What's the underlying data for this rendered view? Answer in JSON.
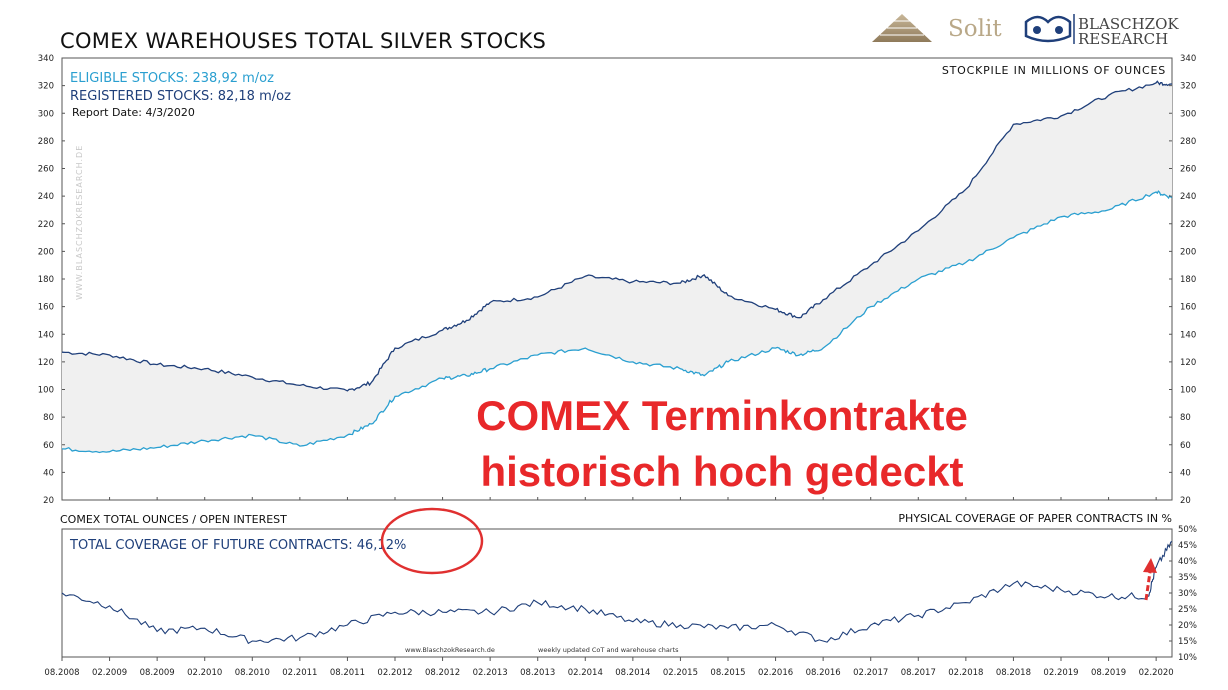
{
  "header": {
    "title": "COMEX WAREHOUSES  TOTAL SILVER STOCKS",
    "logo_solit": "Solit",
    "logo_blaschzok_1": "BLASCHZOK",
    "logo_blaschzok_2": "RESEARCH"
  },
  "legend": {
    "eligible": "ELIGIBLE STOCKS: 238,92 m/oz",
    "registered": "REGISTERED STOCKS: 82,18 m/oz",
    "report_date": "Report Date: 4/3/2020",
    "units_note": "STOCKPILE IN MILLIONS OF OUNCES",
    "watermark": "WWW.BLASCHZOKRESEARCH.DE"
  },
  "lower_panel": {
    "left_title": "COMEX TOTAL OUNCES / OPEN INTEREST",
    "right_title": "PHYSICAL COVERAGE OF PAPER CONTRACTS IN %",
    "coverage_label": "TOTAL COVERAGE OF FUTURE CONTRACTS: 46,12%",
    "footer_site": "www.BlaschzokResearch.de",
    "footer_note": "weekly updated CoT and warehouse charts"
  },
  "overlay": {
    "line1": "COMEX Terminkontrakte",
    "line2": "historisch hoch gedeckt"
  },
  "colors": {
    "total_line": "#1f3f7a",
    "eligible_line": "#2a9fd0",
    "band_fill": "#f0f0f0",
    "coverage_line": "#1f3f7a",
    "highlight_red": "#e03030",
    "eligible_text": "#2a9fd0",
    "registered_text": "#1f3f7a"
  },
  "chart_data": [
    {
      "type": "line",
      "title": "COMEX WAREHOUSES  TOTAL SILVER STOCKS",
      "ylabel": "STOCKPILE IN MILLIONS OF OUNCES",
      "ylim": [
        20,
        340
      ],
      "y_ticks": [
        20,
        40,
        60,
        80,
        100,
        120,
        140,
        160,
        180,
        200,
        220,
        240,
        260,
        280,
        300,
        320,
        340
      ],
      "x_range": [
        "2008-08",
        "2020-04"
      ],
      "x_ticks": [
        "08.2008",
        "02.2009",
        "08.2009",
        "02.2010",
        "08.2010",
        "02.2011",
        "08.2011",
        "02.2012",
        "08.2012",
        "02.2013",
        "08.2013",
        "02.2014",
        "08.2014",
        "02.2015",
        "08.2015",
        "02.2016",
        "08.2016",
        "02.2017",
        "08.2017",
        "02.2018",
        "08.2018",
        "02.2019",
        "08.2019",
        "02.2020"
      ],
      "grid": false,
      "shaded_band_between_series": true,
      "series": [
        {
          "name": "TOTAL",
          "points": [
            [
              "2008-08",
              127
            ],
            [
              "2009-02",
              125
            ],
            [
              "2009-08",
              118
            ],
            [
              "2010-02",
              115
            ],
            [
              "2010-08",
              109
            ],
            [
              "2011-02",
              103
            ],
            [
              "2011-08",
              99
            ],
            [
              "2011-11",
              105
            ],
            [
              "2012-02",
              130
            ],
            [
              "2012-08",
              143
            ],
            [
              "2012-11",
              150
            ],
            [
              "2013-02",
              163
            ],
            [
              "2013-08",
              167
            ],
            [
              "2014-02",
              182
            ],
            [
              "2014-08",
              178
            ],
            [
              "2015-02",
              177
            ],
            [
              "2015-05",
              183
            ],
            [
              "2015-08",
              168
            ],
            [
              "2016-02",
              158
            ],
            [
              "2016-05",
              152
            ],
            [
              "2016-08",
              165
            ],
            [
              "2017-02",
              190
            ],
            [
              "2017-08",
              215
            ],
            [
              "2018-02",
              245
            ],
            [
              "2018-08",
              292
            ],
            [
              "2019-02",
              298
            ],
            [
              "2019-08",
              313
            ],
            [
              "2020-02",
              322
            ],
            [
              "2020-04",
              321
            ]
          ]
        },
        {
          "name": "ELIGIBLE STOCKS",
          "points": [
            [
              "2008-08",
              57
            ],
            [
              "2009-02",
              55
            ],
            [
              "2009-08",
              58
            ],
            [
              "2010-02",
              63
            ],
            [
              "2010-08",
              67
            ],
            [
              "2011-02",
              59
            ],
            [
              "2011-08",
              67
            ],
            [
              "2011-11",
              75
            ],
            [
              "2012-02",
              95
            ],
            [
              "2012-08",
              108
            ],
            [
              "2012-11",
              110
            ],
            [
              "2013-02",
              115
            ],
            [
              "2013-08",
              125
            ],
            [
              "2014-02",
              130
            ],
            [
              "2014-08",
              120
            ],
            [
              "2015-02",
              115
            ],
            [
              "2015-05",
              110
            ],
            [
              "2015-08",
              120
            ],
            [
              "2016-02",
              130
            ],
            [
              "2016-05",
              125
            ],
            [
              "2016-08",
              130
            ],
            [
              "2017-02",
              160
            ],
            [
              "2017-08",
              180
            ],
            [
              "2018-02",
              192
            ],
            [
              "2018-08",
              210
            ],
            [
              "2019-02",
              225
            ],
            [
              "2019-08",
              230
            ],
            [
              "2020-02",
              243
            ],
            [
              "2020-04",
              239
            ]
          ]
        }
      ]
    },
    {
      "type": "line",
      "title": "COMEX TOTAL OUNCES / OPEN INTEREST",
      "ylabel": "PHYSICAL COVERAGE OF PAPER CONTRACTS IN %",
      "ylim": [
        10,
        50
      ],
      "y_ticks": [
        10,
        15,
        20,
        25,
        30,
        35,
        40,
        45,
        50
      ],
      "y_tick_suffix": "%",
      "x_range": [
        "2008-08",
        "2020-04"
      ],
      "series": [
        {
          "name": "TOTAL COVERAGE OF FUTURE CONTRACTS",
          "points": [
            [
              "2008-08",
              30
            ],
            [
              "2009-02",
              26
            ],
            [
              "2009-08",
              18
            ],
            [
              "2010-02",
              19
            ],
            [
              "2010-08",
              15
            ],
            [
              "2011-02",
              16
            ],
            [
              "2011-08",
              20
            ],
            [
              "2012-02",
              24
            ],
            [
              "2012-08",
              24
            ],
            [
              "2013-02",
              24
            ],
            [
              "2013-08",
              27
            ],
            [
              "2014-02",
              25
            ],
            [
              "2014-08",
              21
            ],
            [
              "2015-02",
              20
            ],
            [
              "2015-08",
              19
            ],
            [
              "2016-02",
              20
            ],
            [
              "2016-08",
              15
            ],
            [
              "2017-02",
              20
            ],
            [
              "2017-08",
              23
            ],
            [
              "2018-02",
              27
            ],
            [
              "2018-08",
              33
            ],
            [
              "2019-02",
              31
            ],
            [
              "2019-08",
              29
            ],
            [
              "2020-01",
              29
            ],
            [
              "2020-02",
              38
            ],
            [
              "2020-04",
              46.12
            ]
          ]
        }
      ]
    }
  ]
}
